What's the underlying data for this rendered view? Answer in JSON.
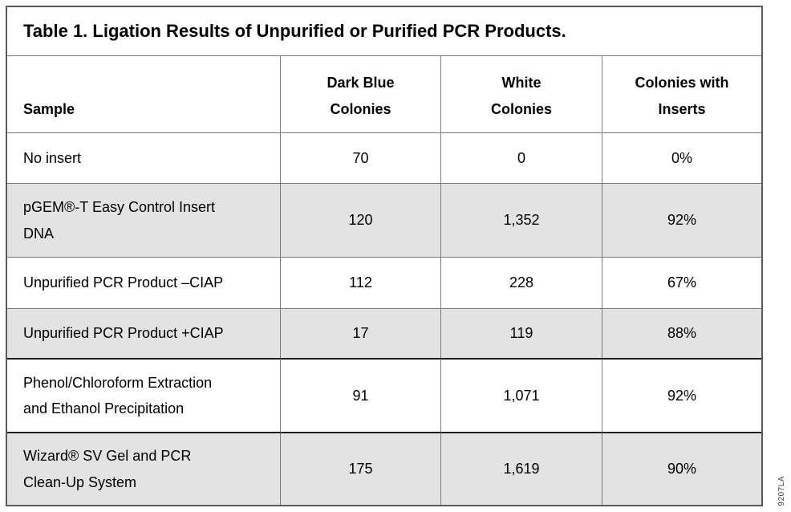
{
  "title": "Table 1. Ligation Results of Unpurified or Purified PCR Products.",
  "watermark": "9207LA",
  "colors": {
    "row_alt_fill": "#e3e3e3",
    "grid_line": "#7a7a7a",
    "section_divider_line": "#1f1f1f",
    "text": "#000000"
  },
  "table": {
    "columns": [
      {
        "label": "Sample"
      },
      {
        "label": "Dark Blue\nColonies"
      },
      {
        "label": "White\nColonies"
      },
      {
        "label": "Colonies with\nInserts"
      }
    ],
    "rows": [
      {
        "sample": "No insert",
        "dark_blue_colonies": "70",
        "white_colonies": "0",
        "colonies_with_inserts": "0%"
      },
      {
        "sample": "pGEM®-T Easy Control Insert\nDNA",
        "dark_blue_colonies": "120",
        "white_colonies": "1,352",
        "colonies_with_inserts": "92%"
      },
      {
        "sample": "Unpurified PCR Product –CIAP",
        "dark_blue_colonies": "112",
        "white_colonies": "228",
        "colonies_with_inserts": "67%"
      },
      {
        "sample": "Unpurified PCR Product +CIAP",
        "dark_blue_colonies": "17",
        "white_colonies": "119",
        "colonies_with_inserts": "88%"
      },
      {
        "sample": "Phenol/Chloroform Extraction\nand Ethanol Precipitation",
        "dark_blue_colonies": "91",
        "white_colonies": "1,071",
        "colonies_with_inserts": "92%"
      },
      {
        "sample": "Wizard® SV Gel and PCR\nClean-Up System",
        "dark_blue_colonies": "175",
        "white_colonies": "1,619",
        "colonies_with_inserts": "90%"
      }
    ]
  }
}
